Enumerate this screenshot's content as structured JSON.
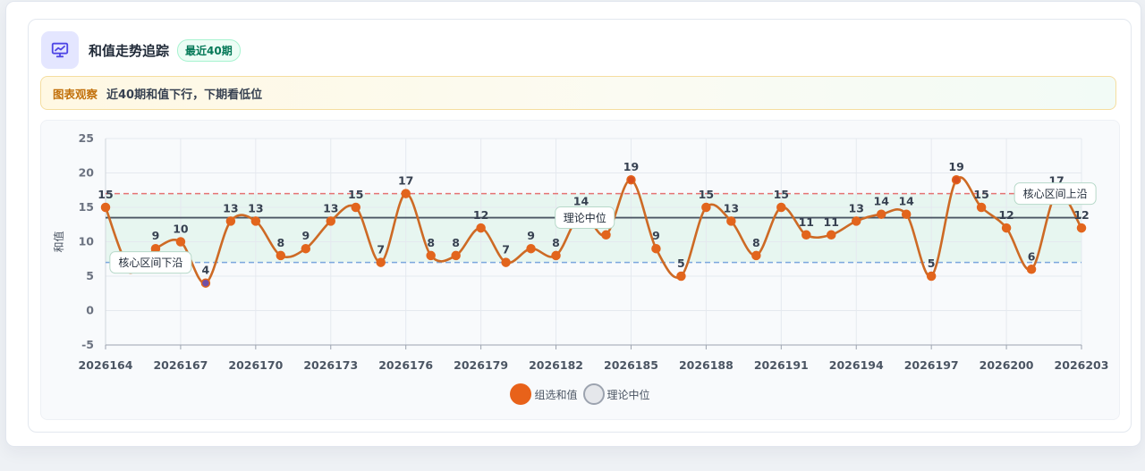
{
  "header": {
    "title": "和值走势追踪",
    "badge": "最近40期"
  },
  "observation": {
    "label": "图表观察",
    "text": "近40期和值下行，下期看低位"
  },
  "colors": {
    "series": "#e8621a",
    "line": "#cd6a25",
    "point": "#e2651d",
    "low_point": "#6f4fa6",
    "upper_line": "#e57373",
    "lower_line": "#7ba7dd",
    "median_line": "#4b5563",
    "band": "#e2f4ec"
  },
  "chart_data": {
    "type": "line",
    "ylabel": "和值",
    "ylim": [
      -5,
      25
    ],
    "yticks": [
      -5,
      0,
      5,
      10,
      15,
      20,
      25
    ],
    "x": [
      "2026164",
      "2026165",
      "2026166",
      "2026167",
      "2026168",
      "2026169",
      "2026170",
      "2026171",
      "2026172",
      "2026173",
      "2026174",
      "2026175",
      "2026176",
      "2026177",
      "2026178",
      "2026179",
      "2026180",
      "2026181",
      "2026182",
      "2026183",
      "2026184",
      "2026185",
      "2026186",
      "2026187",
      "2026188",
      "2026189",
      "2026190",
      "2026191",
      "2026192",
      "2026193",
      "2026194",
      "2026195",
      "2026196",
      "2026197",
      "2026198",
      "2026199",
      "2026200",
      "2026201",
      "2026202",
      "2026203"
    ],
    "xtick_labels": [
      "2026164",
      "2026167",
      "2026170",
      "2026173",
      "2026176",
      "2026179",
      "2026182",
      "2026185",
      "2026188",
      "2026191",
      "2026194",
      "2026197",
      "2026200",
      "2026203"
    ],
    "series": [
      {
        "name": "组选和值",
        "values": [
          15,
          6,
          9,
          10,
          4,
          13,
          13,
          8,
          9,
          13,
          15,
          7,
          17,
          8,
          8,
          12,
          7,
          9,
          8,
          14,
          11,
          19,
          9,
          5,
          15,
          13,
          8,
          15,
          11,
          11,
          13,
          14,
          14,
          5,
          19,
          15,
          12,
          6,
          17,
          12
        ]
      }
    ],
    "reference_lines": [
      {
        "name": "核心区间上沿",
        "value": 17
      },
      {
        "name": "理论中位",
        "value": 13.5
      },
      {
        "name": "核心区间下沿",
        "value": 7
      }
    ],
    "legend": {
      "position": "bottom",
      "items": [
        "组选和值",
        "理论中位"
      ]
    },
    "grid": true
  }
}
